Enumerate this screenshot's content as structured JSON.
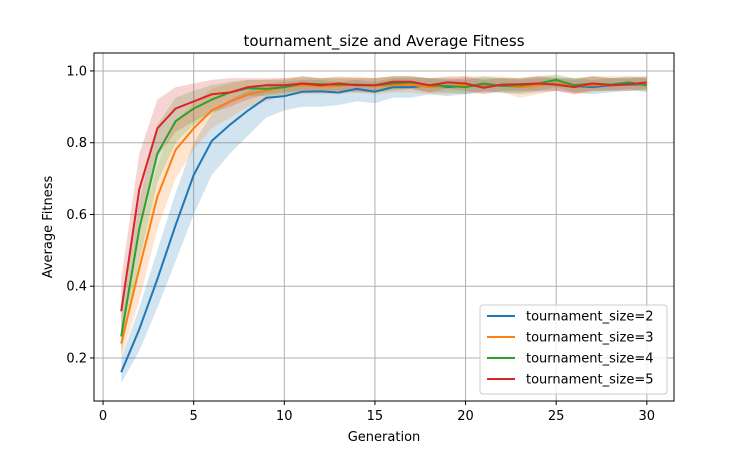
{
  "chart_data": {
    "type": "line",
    "title": "tournament_size and Average Fitness",
    "xlabel": "Generation",
    "ylabel": "Average Fitness",
    "xlim": [
      -0.5,
      31.5
    ],
    "ylim": [
      0.08,
      1.05
    ],
    "xticks": [
      0,
      5,
      10,
      15,
      20,
      25,
      30
    ],
    "yticks": [
      0.2,
      0.4,
      0.6,
      0.8,
      1.0
    ],
    "ytick_labels": [
      "0.2",
      "0.4",
      "0.6",
      "0.8",
      "1.0"
    ],
    "grid": true,
    "legend_position": "bottom-right",
    "x": [
      1,
      2,
      3,
      4,
      5,
      6,
      7,
      8,
      9,
      10,
      11,
      12,
      13,
      14,
      15,
      16,
      17,
      18,
      19,
      20,
      21,
      22,
      23,
      24,
      25,
      26,
      27,
      28,
      29,
      30
    ],
    "series": [
      {
        "name": "tournament_size=2",
        "color": "#1f77b4",
        "values": [
          0.16,
          0.28,
          0.42,
          0.57,
          0.71,
          0.805,
          0.85,
          0.89,
          0.925,
          0.93,
          0.942,
          0.943,
          0.94,
          0.95,
          0.942,
          0.955,
          0.955,
          0.96,
          0.955,
          0.958,
          0.96,
          0.96,
          0.955,
          0.962,
          0.965,
          0.958,
          0.955,
          0.96,
          0.962,
          0.963
        ],
        "lower": [
          0.13,
          0.22,
          0.34,
          0.47,
          0.6,
          0.71,
          0.77,
          0.82,
          0.87,
          0.89,
          0.9,
          0.9,
          0.905,
          0.915,
          0.91,
          0.925,
          0.925,
          0.935,
          0.93,
          0.935,
          0.94,
          0.94,
          0.935,
          0.94,
          0.945,
          0.94,
          0.935,
          0.94,
          0.945,
          0.945
        ],
        "upper": [
          0.2,
          0.34,
          0.5,
          0.66,
          0.8,
          0.88,
          0.92,
          0.945,
          0.965,
          0.97,
          0.975,
          0.975,
          0.97,
          0.975,
          0.97,
          0.98,
          0.98,
          0.98,
          0.975,
          0.98,
          0.98,
          0.98,
          0.975,
          0.98,
          0.98,
          0.98,
          0.975,
          0.98,
          0.98,
          0.98
        ]
      },
      {
        "name": "tournament_size=3",
        "color": "#ff7f0e",
        "values": [
          0.24,
          0.45,
          0.65,
          0.78,
          0.84,
          0.89,
          0.915,
          0.935,
          0.945,
          0.955,
          0.96,
          0.957,
          0.958,
          0.962,
          0.958,
          0.96,
          0.962,
          0.955,
          0.958,
          0.96,
          0.962,
          0.96,
          0.955,
          0.96,
          0.965,
          0.958,
          0.96,
          0.962,
          0.965,
          0.963
        ],
        "lower": [
          0.2,
          0.36,
          0.56,
          0.7,
          0.78,
          0.84,
          0.87,
          0.9,
          0.915,
          0.93,
          0.935,
          0.935,
          0.935,
          0.94,
          0.935,
          0.94,
          0.94,
          0.935,
          0.935,
          0.94,
          0.94,
          0.94,
          0.925,
          0.935,
          0.945,
          0.935,
          0.94,
          0.945,
          0.945,
          0.945
        ],
        "upper": [
          0.29,
          0.55,
          0.74,
          0.86,
          0.91,
          0.95,
          0.965,
          0.975,
          0.975,
          0.98,
          0.98,
          0.98,
          0.98,
          0.985,
          0.98,
          0.985,
          0.985,
          0.98,
          0.98,
          0.985,
          0.985,
          0.985,
          0.98,
          0.985,
          0.985,
          0.98,
          0.985,
          0.985,
          0.985,
          0.985
        ]
      },
      {
        "name": "tournament_size=4",
        "color": "#2ca02c",
        "values": [
          0.26,
          0.56,
          0.77,
          0.86,
          0.895,
          0.92,
          0.94,
          0.952,
          0.95,
          0.955,
          0.965,
          0.963,
          0.962,
          0.962,
          0.96,
          0.965,
          0.968,
          0.96,
          0.958,
          0.955,
          0.965,
          0.958,
          0.96,
          0.965,
          0.975,
          0.96,
          0.965,
          0.962,
          0.968,
          0.96
        ],
        "lower": [
          0.21,
          0.47,
          0.69,
          0.8,
          0.85,
          0.88,
          0.91,
          0.93,
          0.93,
          0.935,
          0.945,
          0.945,
          0.945,
          0.945,
          0.94,
          0.945,
          0.95,
          0.94,
          0.94,
          0.935,
          0.945,
          0.94,
          0.94,
          0.945,
          0.955,
          0.94,
          0.945,
          0.945,
          0.95,
          0.94
        ],
        "upper": [
          0.32,
          0.64,
          0.85,
          0.925,
          0.945,
          0.96,
          0.97,
          0.975,
          0.975,
          0.975,
          0.985,
          0.98,
          0.98,
          0.98,
          0.98,
          0.985,
          0.985,
          0.98,
          0.98,
          0.975,
          0.985,
          0.98,
          0.98,
          0.985,
          0.99,
          0.98,
          0.985,
          0.98,
          0.985,
          0.98
        ]
      },
      {
        "name": "tournament_size=5",
        "color": "#d62728",
        "values": [
          0.33,
          0.67,
          0.84,
          0.895,
          0.915,
          0.935,
          0.94,
          0.955,
          0.96,
          0.96,
          0.965,
          0.96,
          0.965,
          0.96,
          0.96,
          0.97,
          0.97,
          0.96,
          0.968,
          0.965,
          0.953,
          0.962,
          0.963,
          0.965,
          0.962,
          0.955,
          0.965,
          0.96,
          0.963,
          0.968
        ],
        "lower": [
          0.26,
          0.57,
          0.76,
          0.83,
          0.86,
          0.885,
          0.9,
          0.92,
          0.935,
          0.94,
          0.945,
          0.94,
          0.945,
          0.94,
          0.94,
          0.95,
          0.95,
          0.94,
          0.95,
          0.945,
          0.935,
          0.945,
          0.945,
          0.945,
          0.945,
          0.935,
          0.945,
          0.945,
          0.945,
          0.95
        ],
        "upper": [
          0.42,
          0.77,
          0.92,
          0.955,
          0.965,
          0.975,
          0.98,
          0.98,
          0.98,
          0.98,
          0.985,
          0.98,
          0.985,
          0.98,
          0.98,
          0.985,
          0.985,
          0.98,
          0.985,
          0.985,
          0.975,
          0.98,
          0.98,
          0.985,
          0.98,
          0.975,
          0.985,
          0.98,
          0.98,
          0.985
        ]
      }
    ]
  }
}
